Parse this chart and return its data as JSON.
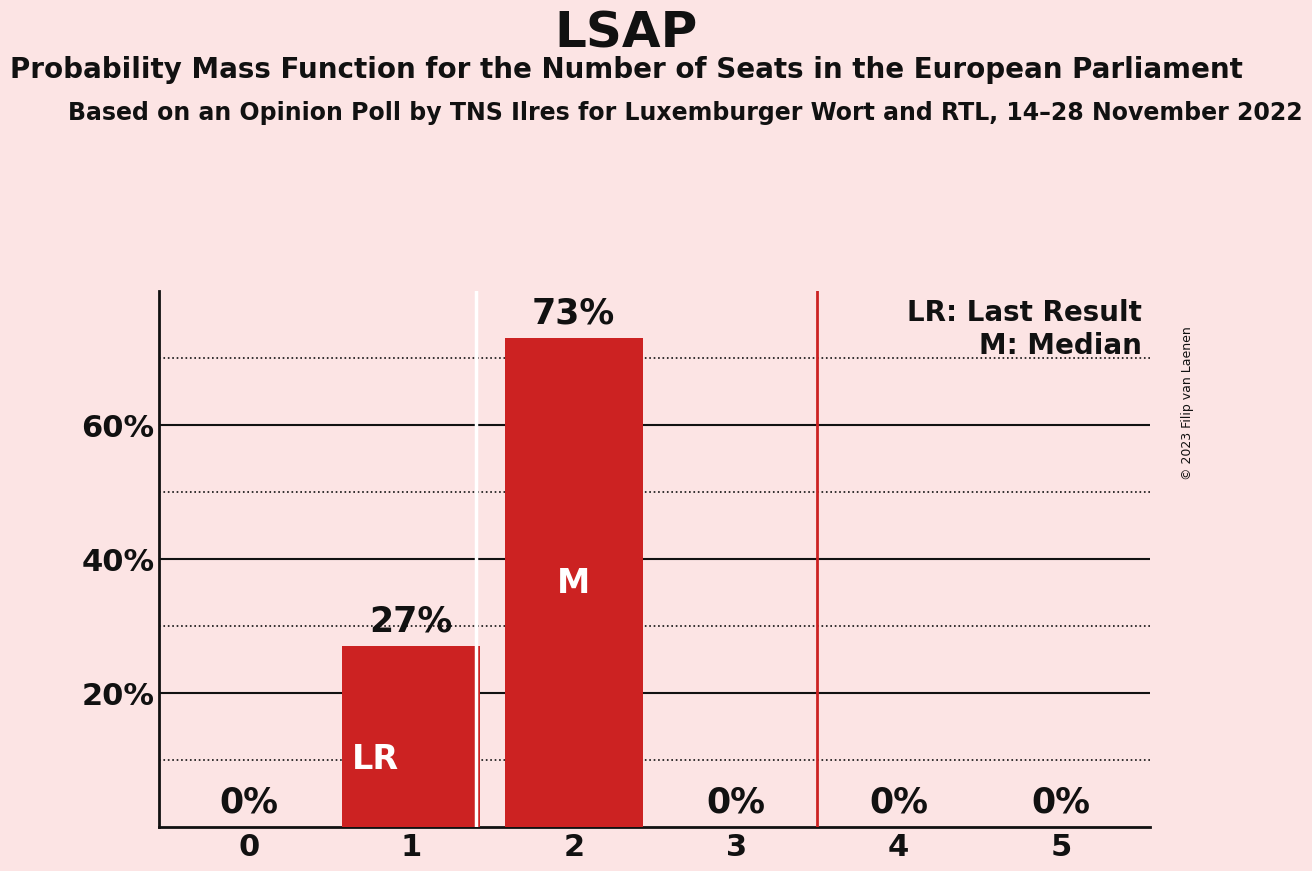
{
  "title": "LSAP",
  "subtitle": "Probability Mass Function for the Number of Seats in the European Parliament",
  "source_line": "Based on an Opinion Poll by TNS Ilres for Luxemburger Wort and RTL, 14–28 November 2022",
  "copyright": "© 2023 Filip van Laenen",
  "x_values": [
    0,
    1,
    2,
    3,
    4,
    5
  ],
  "y_values": [
    0,
    0.27,
    0.73,
    0,
    0,
    0
  ],
  "bar_color": "#cc2222",
  "background_color": "#fce4e4",
  "last_result": 1,
  "median": 2,
  "lr_line_x": 1.4,
  "median_line_x": 3.5,
  "lr_line_color": "#ffffff",
  "vline_color": "#cc2222",
  "text_color": "#111111",
  "solid_grid_color": "#111111",
  "dotted_grid_color": "#111111",
  "solid_yticks": [
    0.2,
    0.4,
    0.6
  ],
  "dotted_yticks": [
    0.1,
    0.3,
    0.5,
    0.7
  ],
  "ytick_labels_pos": [
    0.2,
    0.4,
    0.6
  ],
  "ytick_label_strs": [
    "20%",
    "40%",
    "60%"
  ],
  "ylim": [
    0,
    0.8
  ],
  "xlim": [
    -0.55,
    5.55
  ],
  "legend_lr_text": "LR: Last Result",
  "legend_m_text": "M: Median",
  "bar_labels": [
    "0%",
    "27%",
    "73%",
    "0%",
    "0%",
    "0%"
  ],
  "lr_label": "LR",
  "median_label": "M",
  "title_fontsize": 36,
  "subtitle_fontsize": 20,
  "source_fontsize": 17,
  "bar_label_fontsize": 25,
  "axis_tick_fontsize": 22,
  "inner_label_fontsize": 24,
  "legend_fontsize": 20,
  "bar_width": 0.85
}
